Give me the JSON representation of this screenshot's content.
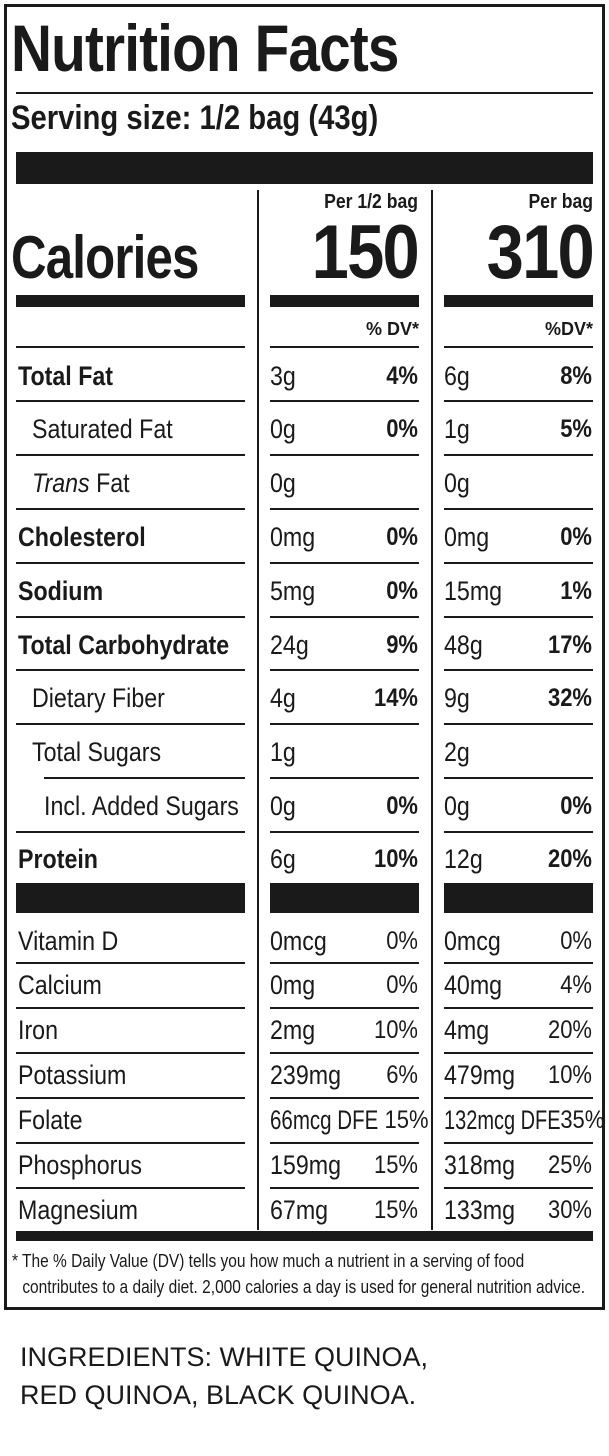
{
  "title": "Nutrition Facts",
  "serving_size": "Serving size: 1/2 bag (43g)",
  "calories_label": "Calories",
  "columns": [
    {
      "header": "Per 1/2 bag",
      "calories": "150",
      "dv_header": "% DV*"
    },
    {
      "header": "Per bag",
      "calories": "310",
      "dv_header": "%DV*"
    }
  ],
  "nutrients": [
    {
      "label": "Total Fat",
      "c1_amount": "3g",
      "c1_dv": "4%",
      "c2_amount": "6g",
      "c2_dv": "8%"
    },
    {
      "label": "Saturated Fat",
      "c1_amount": "0g",
      "c1_dv": "0%",
      "c2_amount": "1g",
      "c2_dv": "5%"
    },
    {
      "label_italic": "Trans",
      "label_rest": " Fat",
      "c1_amount": "0g",
      "c1_dv": "",
      "c2_amount": "0g",
      "c2_dv": ""
    },
    {
      "label": "Cholesterol",
      "c1_amount": "0mg",
      "c1_dv": "0%",
      "c2_amount": "0mg",
      "c2_dv": "0%"
    },
    {
      "label": "Sodium",
      "c1_amount": "5mg",
      "c1_dv": "0%",
      "c2_amount": "15mg",
      "c2_dv": "1%"
    },
    {
      "label": "Total Carbohydrate",
      "c1_amount": "24g",
      "c1_dv": "9%",
      "c2_amount": "48g",
      "c2_dv": "17%"
    },
    {
      "label": "Dietary Fiber",
      "c1_amount": "4g",
      "c1_dv": "14%",
      "c2_amount": "9g",
      "c2_dv": "32%"
    },
    {
      "label": "Total Sugars",
      "c1_amount": "1g",
      "c1_dv": "",
      "c2_amount": "2g",
      "c2_dv": ""
    },
    {
      "label": "Incl. Added Sugars",
      "c1_amount": "0g",
      "c1_dv": "0%",
      "c2_amount": "0g",
      "c2_dv": "0%"
    },
    {
      "label": "Protein",
      "c1_amount": "6g",
      "c1_dv": "10%",
      "c2_amount": "12g",
      "c2_dv": "20%"
    }
  ],
  "vitamins": [
    {
      "label": "Vitamin D",
      "c1_amount": "0mcg",
      "c1_dv": "0%",
      "c2_amount": "0mcg",
      "c2_dv": "0%"
    },
    {
      "label": "Calcium",
      "c1_amount": "0mg",
      "c1_dv": "0%",
      "c2_amount": "40mg",
      "c2_dv": "4%"
    },
    {
      "label": "Iron",
      "c1_amount": "2mg",
      "c1_dv": "10%",
      "c2_amount": "4mg",
      "c2_dv": "20%"
    },
    {
      "label": "Potassium",
      "c1_amount": "239mg",
      "c1_dv": "6%",
      "c2_amount": "479mg",
      "c2_dv": "10%"
    },
    {
      "label": "Folate",
      "c1_amount": "66mcg DFE",
      "c1_dv": "15%",
      "c2_amount": "132mcg DFE",
      "c2_dv": "35%"
    },
    {
      "label": "Phosphorus",
      "c1_amount": "159mg",
      "c1_dv": "15%",
      "c2_amount": "318mg",
      "c2_dv": "25%"
    },
    {
      "label": "Magnesium",
      "c1_amount": "67mg",
      "c1_dv": "15%",
      "c2_amount": "133mg",
      "c2_dv": "30%"
    }
  ],
  "footnote_line1": "* The % Daily Value (DV) tells you how much a nutrient in a serving of food",
  "footnote_line2": "contributes to a daily diet. 2,000 calories a day is used for general nutrition advice.",
  "ingredients_line1": "INGREDIENTS: WHITE QUINOA,",
  "ingredients_line2": "RED QUINOA, BLACK QUINOA."
}
